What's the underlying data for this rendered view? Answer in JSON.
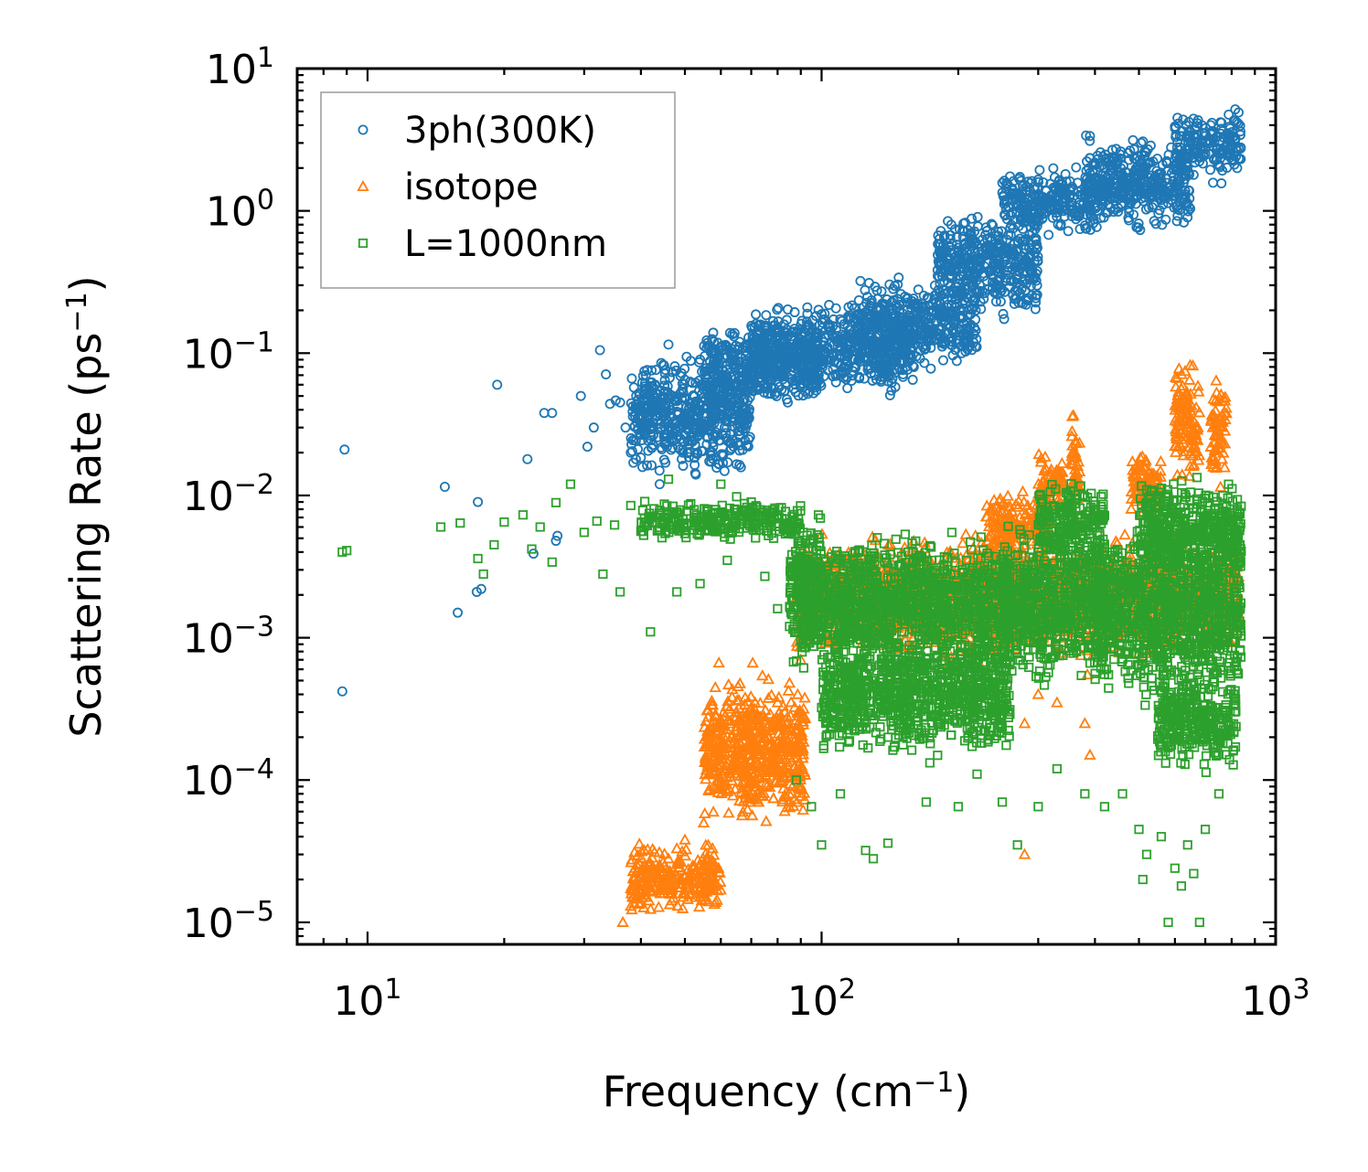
{
  "chart_data": {
    "type": "scatter",
    "xscale": "log",
    "yscale": "log",
    "xlim": [
      7,
      1000
    ],
    "ylim": [
      7e-06,
      10
    ],
    "xlabel": {
      "text": "Frequency (cm",
      "sup": "−1",
      "tail": ")"
    },
    "ylabel": {
      "text": "Scattering Rate (ps",
      "sup": "−1",
      "tail": ")"
    },
    "xticks": [
      {
        "value": 10,
        "base": "10",
        "exp": "1"
      },
      {
        "value": 100,
        "base": "10",
        "exp": "2"
      },
      {
        "value": 1000,
        "base": "10",
        "exp": "3"
      }
    ],
    "yticks": [
      {
        "value": 10,
        "base": "10",
        "exp": "1"
      },
      {
        "value": 1,
        "base": "10",
        "exp": "0"
      },
      {
        "value": 0.1,
        "base": "10",
        "exp": "−1"
      },
      {
        "value": 0.01,
        "base": "10",
        "exp": "−2"
      },
      {
        "value": 0.001,
        "base": "10",
        "exp": "−3"
      },
      {
        "value": 0.0001,
        "base": "10",
        "exp": "−4"
      },
      {
        "value": 1e-05,
        "base": "10",
        "exp": "−5"
      }
    ],
    "legend_position": "upper-left",
    "series": [
      {
        "name": "3ph(300K)",
        "marker": "circle",
        "color": "#1f77b4",
        "points": [
          [
            8.9,
            0.021
          ],
          [
            8.8,
            0.00042
          ],
          [
            14.8,
            0.0115
          ],
          [
            15.8,
            0.0015
          ],
          [
            17.4,
            0.0021
          ],
          [
            17.8,
            0.0022
          ],
          [
            17.5,
            0.009
          ],
          [
            19.3,
            0.06
          ],
          [
            22.5,
            0.018
          ],
          [
            23.2,
            0.0039
          ],
          [
            24.5,
            0.038
          ],
          [
            25.5,
            0.038
          ],
          [
            26.2,
            0.0052
          ],
          [
            26.0,
            0.0048
          ],
          [
            29.5,
            0.05
          ],
          [
            30.5,
            0.022
          ],
          [
            31.5,
            0.03
          ],
          [
            32.5,
            0.105
          ],
          [
            33.5,
            0.071
          ],
          [
            34.2,
            0.044
          ],
          [
            35.2,
            0.0465
          ],
          [
            36.0,
            0.045
          ],
          [
            37.0,
            0.03
          ],
          [
            38.0,
            0.02
          ],
          [
            39.0,
            0.018
          ],
          [
            40.0,
            0.032
          ],
          [
            41.0,
            0.07
          ],
          [
            42.0,
            0.062
          ],
          [
            43.0,
            0.046
          ],
          [
            44.0,
            0.012
          ],
          [
            45.0,
            0.082
          ],
          [
            46.0,
            0.115
          ],
          [
            47.0,
            0.05
          ],
          [
            48.0,
            0.033
          ],
          [
            49.0,
            0.025
          ],
          [
            50.0,
            0.065
          ],
          [
            52.0,
            0.045
          ],
          [
            54.0,
            0.09
          ],
          [
            56.0,
            0.075
          ],
          [
            58.0,
            0.06
          ],
          [
            60.0,
            0.11
          ],
          [
            62.0,
            0.095
          ],
          [
            64.0,
            0.04
          ],
          [
            66.0,
            0.12
          ],
          [
            68.0,
            0.08
          ],
          [
            70.0,
            0.065
          ]
        ],
        "bands": [
          {
            "x0": 38,
            "x1": 70,
            "y0": 0.012,
            "y1": 0.11
          },
          {
            "x0": 55,
            "x1": 100,
            "y0": 0.035,
            "y1": 0.17
          },
          {
            "x0": 70,
            "x1": 160,
            "y0": 0.045,
            "y1": 0.26
          },
          {
            "x0": 120,
            "x1": 220,
            "y0": 0.07,
            "y1": 0.38
          },
          {
            "x0": 180,
            "x1": 300,
            "y0": 0.15,
            "y1": 1.2
          },
          {
            "x0": 250,
            "x1": 420,
            "y0": 0.6,
            "y1": 2.2
          },
          {
            "x0": 380,
            "x1": 650,
            "y0": 0.65,
            "y1": 3.8
          },
          {
            "x0": 600,
            "x1": 840,
            "y0": 1.5,
            "y1": 5.6
          }
        ]
      },
      {
        "name": "isotope",
        "marker": "triangle",
        "color": "#ff7f0e",
        "points": [
          [
            36.5,
            1e-05
          ],
          [
            38.0,
            1.3e-05
          ],
          [
            40.0,
            1.7e-05
          ],
          [
            41.0,
            1.5e-05
          ],
          [
            42.0,
            2.1e-05
          ],
          [
            44.0,
            2.5e-05
          ],
          [
            46.0,
            2.8e-05
          ],
          [
            48.0,
            3.3e-05
          ],
          [
            50.0,
            3.8e-05
          ],
          [
            55.0,
            5e-05
          ],
          [
            60.0,
            9e-05
          ],
          [
            65.0,
            0.00012
          ],
          [
            70.0,
            0.00019
          ],
          [
            75.0,
            0.00025
          ],
          [
            80.0,
            0.00035
          ],
          [
            85.0,
            0.00048
          ],
          [
            90.0,
            0.0007
          ],
          [
            280.0,
            3e-05
          ],
          [
            280.0,
            0.00025
          ],
          [
            300.0,
            0.0004
          ],
          [
            380.0,
            0.00025
          ],
          [
            390.0,
            0.00015
          ],
          [
            385.0,
            0.00055
          ],
          [
            330.0,
            0.00035
          ]
        ],
        "bands": [
          {
            "x0": 38,
            "x1": 60,
            "y0": 1e-05,
            "y1": 4e-05
          },
          {
            "x0": 55,
            "x1": 92,
            "y0": 4e-05,
            "y1": 0.0007
          },
          {
            "x0": 88,
            "x1": 830,
            "y0": 0.0006,
            "y1": 0.006
          },
          {
            "x0": 230,
            "x1": 320,
            "y0": 0.003,
            "y1": 0.012
          },
          {
            "x0": 300,
            "x1": 340,
            "y0": 0.006,
            "y1": 0.024
          },
          {
            "x0": 355,
            "x1": 370,
            "y0": 0.006,
            "y1": 0.045
          },
          {
            "x0": 480,
            "x1": 560,
            "y0": 0.006,
            "y1": 0.025
          },
          {
            "x0": 600,
            "x1": 680,
            "y0": 0.01,
            "y1": 0.105
          },
          {
            "x0": 720,
            "x1": 780,
            "y0": 0.01,
            "y1": 0.085
          }
        ]
      },
      {
        "name": "L=1000nm",
        "marker": "square",
        "color": "#2ca02c",
        "points": [
          [
            8.8,
            0.004
          ],
          [
            9.0,
            0.0041
          ],
          [
            14.5,
            0.006
          ],
          [
            16.0,
            0.0064
          ],
          [
            17.5,
            0.0036
          ],
          [
            18.0,
            0.0028
          ],
          [
            19.0,
            0.0045
          ],
          [
            20.0,
            0.0065
          ],
          [
            22.0,
            0.0073
          ],
          [
            23.0,
            0.0042
          ],
          [
            24.0,
            0.006
          ],
          [
            25.5,
            0.0034
          ],
          [
            26.0,
            0.0089
          ],
          [
            28.0,
            0.012
          ],
          [
            30.0,
            0.0055
          ],
          [
            32.0,
            0.0066
          ],
          [
            33.0,
            0.0028
          ],
          [
            35.0,
            0.0062
          ],
          [
            36.0,
            0.0021
          ],
          [
            38.0,
            0.0085
          ],
          [
            40.0,
            0.0056
          ],
          [
            42.0,
            0.0011
          ],
          [
            44.0,
            0.0064
          ],
          [
            46.0,
            0.013
          ],
          [
            48.0,
            0.0021
          ],
          [
            50.0,
            0.0054
          ],
          [
            54.0,
            0.0024
          ],
          [
            60.0,
            0.012
          ],
          [
            62.0,
            0.0035
          ],
          [
            65.0,
            0.0098
          ],
          [
            70.0,
            0.009
          ],
          [
            75.0,
            0.0027
          ],
          [
            80.0,
            0.0016
          ],
          [
            85.0,
            0.0012
          ],
          [
            88.0,
            0.0001
          ],
          [
            95.0,
            6.5e-05
          ],
          [
            100.0,
            3.5e-05
          ],
          [
            110.0,
            8e-05
          ],
          [
            125.0,
            3.2e-05
          ],
          [
            130.0,
            2.8e-05
          ],
          [
            140.0,
            3.6e-05
          ],
          [
            170.0,
            7e-05
          ],
          [
            200.0,
            6.5e-05
          ],
          [
            220.0,
            0.00011
          ],
          [
            250.0,
            7e-05
          ],
          [
            270.0,
            3.5e-05
          ],
          [
            300.0,
            6.5e-05
          ],
          [
            330.0,
            0.00012
          ],
          [
            380.0,
            8e-05
          ],
          [
            420.0,
            6.5e-05
          ],
          [
            460.0,
            8e-05
          ],
          [
            500.0,
            4.5e-05
          ],
          [
            510.0,
            2e-05
          ],
          [
            520.0,
            3e-05
          ],
          [
            560.0,
            4e-05
          ],
          [
            580.0,
            1e-05
          ],
          [
            600.0,
            2.4e-05
          ],
          [
            620.0,
            1.8e-05
          ],
          [
            640.0,
            3.5e-05
          ],
          [
            660.0,
            2.2e-05
          ],
          [
            680.0,
            1e-05
          ],
          [
            700.0,
            4.5e-05
          ],
          [
            750.0,
            8e-05
          ]
        ],
        "bands": [
          {
            "x0": 40,
            "x1": 90,
            "y0": 0.0045,
            "y1": 0.0098
          },
          {
            "x0": 85,
            "x1": 100,
            "y0": 0.0005,
            "y1": 0.0095
          },
          {
            "x0": 90,
            "x1": 260,
            "y0": 0.0005,
            "y1": 0.0065
          },
          {
            "x0": 100,
            "x1": 260,
            "y0": 0.00012,
            "y1": 0.0015
          },
          {
            "x0": 250,
            "x1": 420,
            "y0": 0.0004,
            "y1": 0.007
          },
          {
            "x0": 300,
            "x1": 420,
            "y0": 0.0025,
            "y1": 0.015
          },
          {
            "x0": 400,
            "x1": 840,
            "y0": 0.0003,
            "y1": 0.008
          },
          {
            "x0": 500,
            "x1": 840,
            "y0": 0.002,
            "y1": 0.016
          },
          {
            "x0": 550,
            "x1": 820,
            "y0": 0.0001,
            "y1": 0.0007
          }
        ]
      }
    ]
  }
}
